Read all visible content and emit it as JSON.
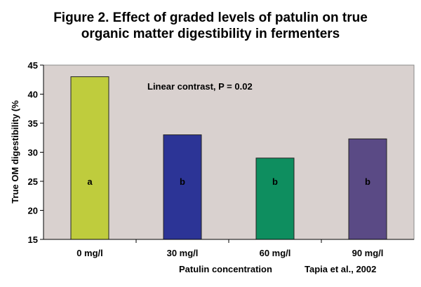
{
  "title_lines": [
    "Figure 2. Effect of graded levels of patulin on true",
    "organic matter digestibility in fermenters"
  ],
  "source": "Tapia et al., 2002",
  "annotation": "Linear contrast, P = 0.02",
  "colors": {
    "plot_bg": "#d9d1cf",
    "bar_0": "#bfcc3d",
    "bar_30": "#2c3496",
    "bar_60": "#0e8e5f",
    "bar_90": "#5a4a85"
  },
  "chart_data": {
    "type": "bar",
    "title": "Figure 2. Effect of graded levels of patulin on true organic matter digestibility in fermenters",
    "xlabel": "Patulin concentration",
    "ylabel": "True OM digestibility (%",
    "categories": [
      "0 mg/l",
      "30 mg/l",
      "60 mg/l",
      "90 mg/l"
    ],
    "values": [
      43,
      33,
      29,
      32.3
    ],
    "letters": [
      "a",
      "b",
      "b",
      "b"
    ],
    "ylim": [
      15,
      45
    ],
    "yticks": [
      15,
      20,
      25,
      30,
      35,
      40,
      45
    ],
    "grid": false,
    "legend": "none"
  }
}
